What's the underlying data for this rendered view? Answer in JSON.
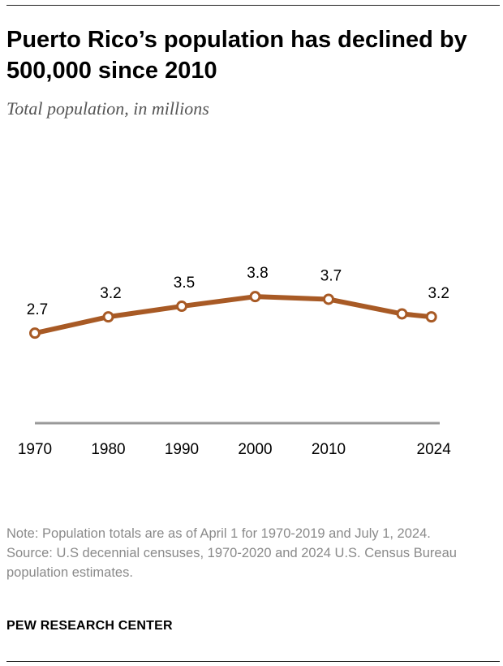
{
  "title": "Puerto Rico’s population has declined by 500,000 since 2010",
  "subtitle": "Total population, in millions",
  "chart_data": {
    "type": "line",
    "title": "Puerto Rico’s population has declined by 500,000 since 2010",
    "subtitle": "Total population, in millions",
    "xlabel": "",
    "ylabel": "Total population, in millions",
    "x": [
      1970,
      1980,
      1990,
      2000,
      2010,
      2020,
      2024
    ],
    "values": [
      2.71,
      3.2,
      3.52,
      3.81,
      3.73,
      3.29,
      3.2
    ],
    "labels": [
      "2.7",
      "3.2",
      "3.5",
      "3.8",
      "3.7",
      null,
      "3.2"
    ],
    "x_tick_labels": [
      "1970",
      "1980",
      "1990",
      "2000",
      "2010",
      "2024"
    ],
    "x_ticks": [
      1970,
      1980,
      1990,
      2000,
      2010,
      2024
    ],
    "ylim": [
      0,
      4
    ],
    "grid": false,
    "line_color": "#a85a25"
  },
  "note": "Note: Population totals are as of April 1 for 1970-2019 and July 1, 2024.",
  "source": "Source: U.S decennial censuses, 1970-2020 and 2024 U.S. Census Bureau population estimates.",
  "brand": "PEW RESEARCH CENTER"
}
